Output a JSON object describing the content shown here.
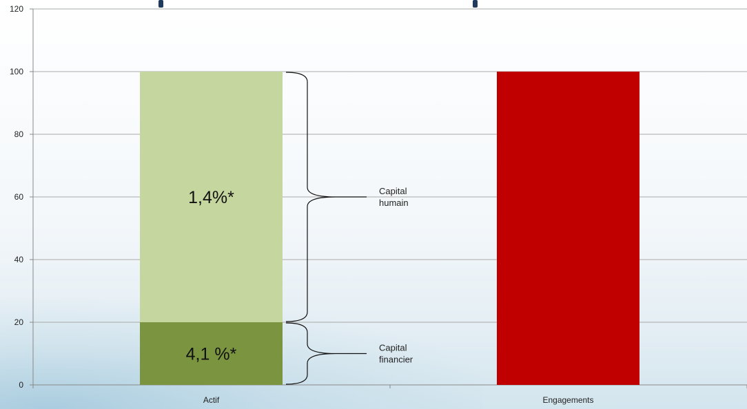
{
  "chart_data": {
    "type": "bar",
    "stacked": true,
    "categories": [
      "Actif",
      "Engagements"
    ],
    "series": [
      {
        "values": [
          20,
          0
        ],
        "color": "#7a9440",
        "labels": [
          "4,1 %*",
          ""
        ]
      },
      {
        "values": [
          80,
          0
        ],
        "color": "#c5d69e",
        "labels": [
          "1,4%*",
          ""
        ]
      },
      {
        "values": [
          0,
          100
        ],
        "color": "#c00000",
        "labels": [
          "",
          ""
        ]
      }
    ],
    "ylim": [
      0,
      120
    ],
    "yticks": [
      0,
      20,
      40,
      60,
      80,
      100,
      120
    ],
    "grid": true,
    "annotations": [
      {
        "text": [
          "Capital",
          "humain"
        ],
        "from": 20,
        "to": 100
      },
      {
        "text": [
          "Capital",
          "financier"
        ],
        "from": 0,
        "to": 20
      }
    ],
    "xlabel": "",
    "ylabel": ""
  }
}
